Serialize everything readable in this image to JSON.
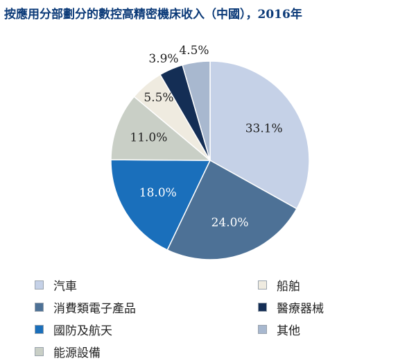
{
  "chart_data": {
    "type": "pie",
    "title": "按應用分部劃分的數控高精密機床收入（中國），2016年",
    "slices": [
      {
        "name": "汽車",
        "value": 33.1,
        "label": "33.1%",
        "color": "#c5d1e7",
        "label_color": "#1e1e1e"
      },
      {
        "name": "消費類電子產品",
        "value": 24.0,
        "label": "24.0%",
        "color": "#4d7196",
        "label_color": "#ffffff"
      },
      {
        "name": "國防及航天",
        "value": 18.0,
        "label": "18.0%",
        "color": "#1a6fbb",
        "label_color": "#ffffff"
      },
      {
        "name": "能源設備",
        "value": 11.0,
        "label": "11.0%",
        "color": "#c9cfc6",
        "label_color": "#1e1e1e"
      },
      {
        "name": "船舶",
        "value": 5.5,
        "label": "5.5%",
        "color": "#efebe0",
        "label_color": "#1e1e1e"
      },
      {
        "name": "醫療器械",
        "value": 3.9,
        "label": "3.9%",
        "color": "#142e55",
        "label_color": "#1e1e1e"
      },
      {
        "name": "其他",
        "value": 4.5,
        "label": "4.5%",
        "color": "#a8b8cf",
        "label_color": "#1e1e1e"
      }
    ],
    "legend": [
      [
        "汽車",
        "消費類電子產品",
        "國防及航天",
        "能源設備"
      ],
      [
        "船舶",
        "醫療器械",
        "其他"
      ]
    ],
    "legend_placement": "bottom",
    "start_angle": "12 o'clock",
    "direction": "clockwise"
  }
}
